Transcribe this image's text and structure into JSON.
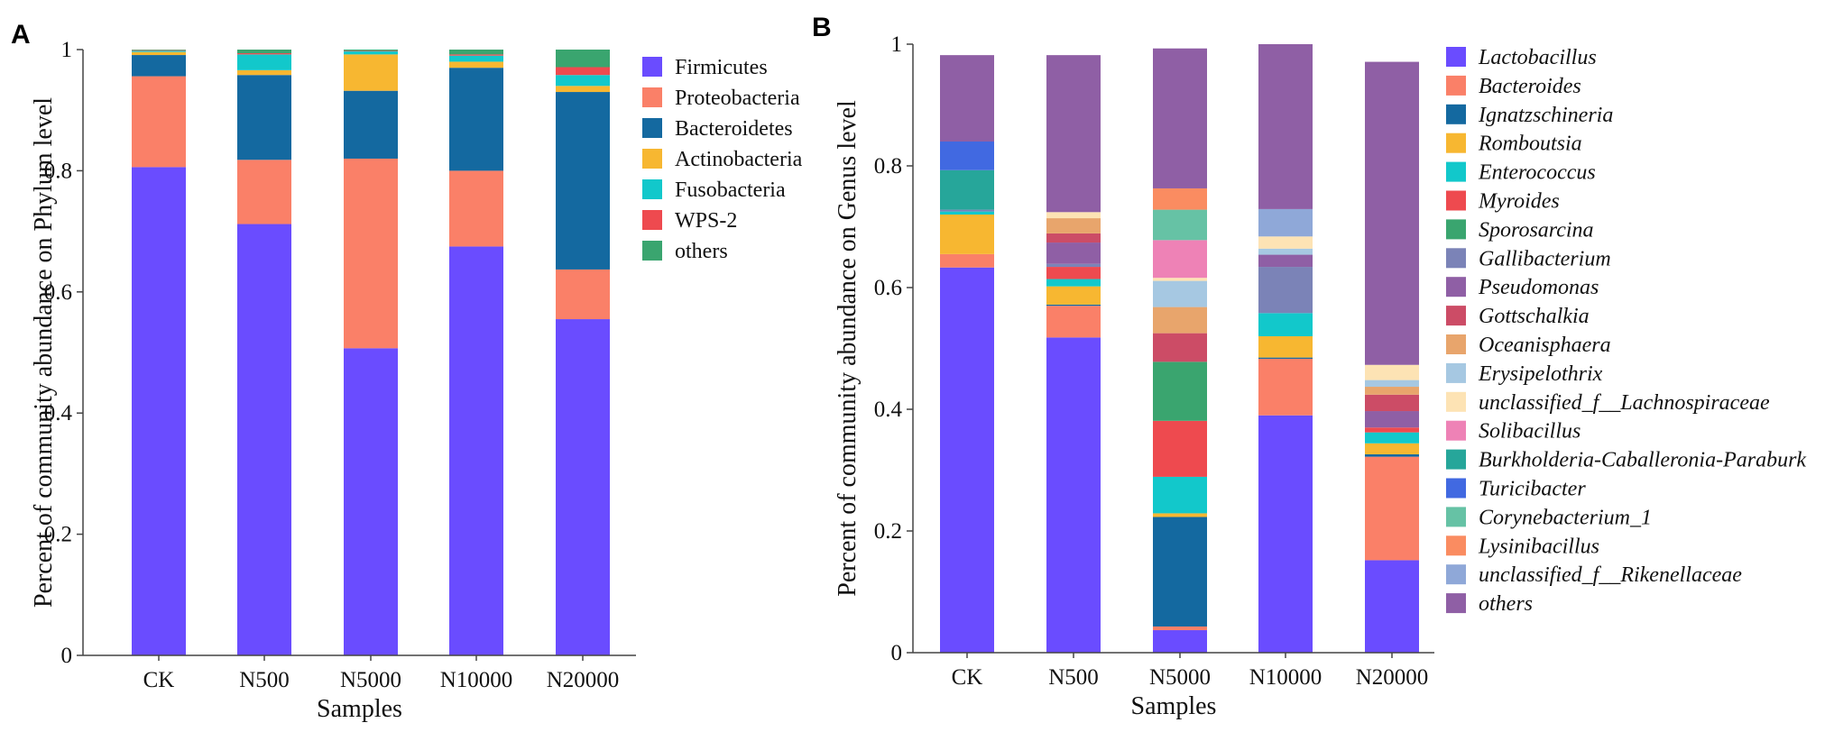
{
  "chart_data": [
    {
      "panel_label": "A",
      "type": "bar",
      "stacked": true,
      "categories": [
        "CK",
        "N500",
        "N5000",
        "N10000",
        "N20000"
      ],
      "xlabel": "Samples",
      "ylabel": "Percent of community abundance on Phylum level",
      "ylim": [
        0,
        1
      ],
      "yticks": [
        "0",
        "0.2",
        "0.4",
        "0.6",
        "0.8",
        "1"
      ],
      "legend_position": "right",
      "italic_legend": false,
      "series": [
        {
          "name": "Firmicutes",
          "color": "#6a4cff",
          "values": [
            0.806,
            0.712,
            0.507,
            0.675,
            0.555
          ]
        },
        {
          "name": "Proteobacteria",
          "color": "#fa8068",
          "values": [
            0.15,
            0.106,
            0.313,
            0.125,
            0.082
          ]
        },
        {
          "name": "Bacteroidetes",
          "color": "#1469a0",
          "values": [
            0.035,
            0.14,
            0.112,
            0.17,
            0.293
          ]
        },
        {
          "name": "Actinobacteria",
          "color": "#f7b731",
          "values": [
            0.005,
            0.008,
            0.06,
            0.01,
            0.01
          ]
        },
        {
          "name": "Fusobacteria",
          "color": "#12c8cb",
          "values": [
            0.002,
            0.026,
            0.005,
            0.01,
            0.018
          ]
        },
        {
          "name": "WPS-2",
          "color": "#ee4a4f",
          "values": [
            0.001,
            0.002,
            0.001,
            0.002,
            0.013
          ]
        },
        {
          "name": "others",
          "color": "#3aa56f",
          "values": [
            0.001,
            0.006,
            0.002,
            0.008,
            0.029
          ]
        }
      ]
    },
    {
      "panel_label": "B",
      "type": "bar",
      "stacked": true,
      "categories": [
        "CK",
        "N500",
        "N5000",
        "N10000",
        "N20000"
      ],
      "xlabel": "Samples",
      "ylabel": "Percent of community abundance on Genus level",
      "ylim": [
        0,
        1
      ],
      "yticks": [
        "0",
        "0.2",
        "0.4",
        "0.6",
        "0.8",
        "1"
      ],
      "legend_position": "right",
      "italic_legend": true,
      "series": [
        {
          "name": "Lactobacillus",
          "color": "#6a4cff",
          "values": [
            0.633,
            0.518,
            0.037,
            0.39,
            0.152
          ]
        },
        {
          "name": "Bacteroides",
          "color": "#fa8068",
          "values": [
            0.022,
            0.052,
            0.006,
            0.093,
            0.17
          ]
        },
        {
          "name": "Ignatzschineria",
          "color": "#1469a0",
          "values": [
            0.0,
            0.002,
            0.18,
            0.002,
            0.004
          ]
        },
        {
          "name": "Romboutsia",
          "color": "#f7b731",
          "values": [
            0.065,
            0.03,
            0.006,
            0.035,
            0.018
          ]
        },
        {
          "name": "Enterococcus",
          "color": "#12c8cb",
          "values": [
            0.005,
            0.012,
            0.06,
            0.038,
            0.018
          ]
        },
        {
          "name": "Myroides",
          "color": "#ee4a4f",
          "values": [
            0.0,
            0.02,
            0.092,
            0.0,
            0.008
          ]
        },
        {
          "name": "Sporosarcina",
          "color": "#3aa56f",
          "values": [
            0.0,
            0.0,
            0.097,
            0.0,
            0.0
          ]
        },
        {
          "name": "Gallibacterium",
          "color": "#7b83b7",
          "values": [
            0.003,
            0.005,
            0.0,
            0.076,
            0.0
          ]
        },
        {
          "name": "Pseudomonas",
          "color": "#8f5fa5",
          "values": [
            0.0,
            0.035,
            0.0,
            0.02,
            0.027
          ]
        },
        {
          "name": "Gottschalkia",
          "color": "#cc4c66",
          "values": [
            0.0,
            0.015,
            0.047,
            0.0,
            0.027
          ]
        },
        {
          "name": "Oceanisphaera",
          "color": "#e8a56c",
          "values": [
            0.0,
            0.025,
            0.043,
            0.0,
            0.013
          ]
        },
        {
          "name": "Erysipelothrix",
          "color": "#a6c8e2",
          "values": [
            0.0,
            0.0,
            0.043,
            0.01,
            0.011
          ]
        },
        {
          "name": "unclassified_f__Lachnospiraceae",
          "color": "#fde3b4",
          "values": [
            0.0,
            0.01,
            0.005,
            0.02,
            0.025
          ]
        },
        {
          "name": "Solibacillus",
          "color": "#ee82b6",
          "values": [
            0.0,
            0.0,
            0.062,
            0.0,
            0.0
          ]
        },
        {
          "name": "Burkholderia-Caballeronia-Paraburk",
          "color": "#26a69a",
          "values": [
            0.065,
            0.0,
            0.0,
            0.0,
            0.0
          ]
        },
        {
          "name": "Turicibacter",
          "color": "#4169e1",
          "values": [
            0.047,
            0.0,
            0.0,
            0.0,
            0.0
          ]
        },
        {
          "name": "Corynebacterium_1",
          "color": "#66c2a5",
          "values": [
            0.0,
            0.0,
            0.05,
            0.0,
            0.0
          ]
        },
        {
          "name": "Lysinibacillus",
          "color": "#fa8c61",
          "values": [
            0.0,
            0.0,
            0.035,
            0.0,
            0.0
          ]
        },
        {
          "name": "unclassified_f__Rikenellaceae",
          "color": "#8fa8d8",
          "values": [
            0.0,
            0.0,
            0.0,
            0.045,
            0.0
          ]
        },
        {
          "name": "others",
          "color": "#8f5fa5",
          "values": [
            0.142,
            0.258,
            0.23,
            0.271,
            0.498
          ]
        }
      ]
    }
  ]
}
